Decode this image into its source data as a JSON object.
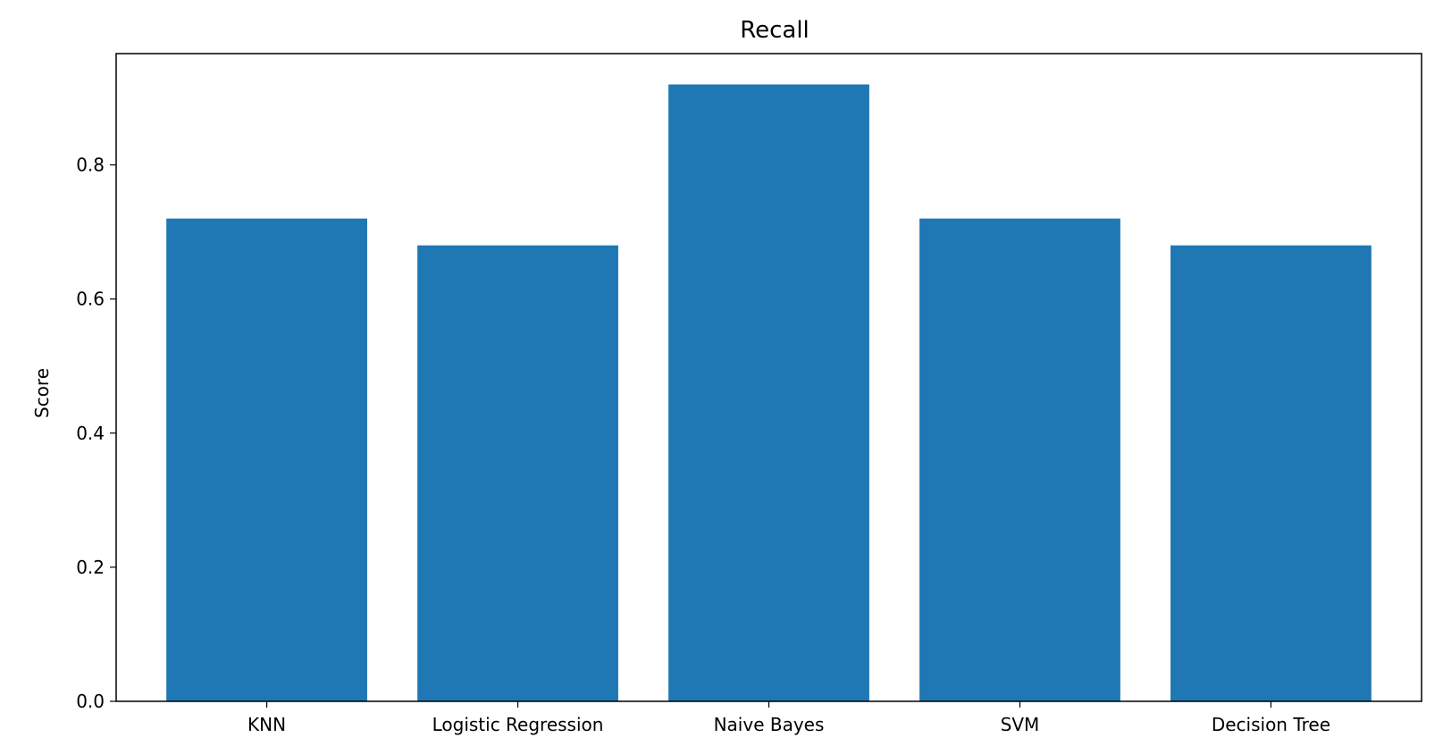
{
  "chart_data": {
    "type": "bar",
    "title": "Recall",
    "xlabel": "",
    "ylabel": "Score",
    "categories": [
      "KNN",
      "Logistic Regression",
      "Naive Bayes",
      "SVM",
      "Decision Tree"
    ],
    "values": [
      0.72,
      0.68,
      0.92,
      0.72,
      0.68
    ],
    "ylim": [
      0,
      0.966
    ],
    "yticks": [
      "0.0",
      "0.2",
      "0.4",
      "0.6",
      "0.8"
    ],
    "grid": false,
    "bar_color": "#1f77b4"
  }
}
